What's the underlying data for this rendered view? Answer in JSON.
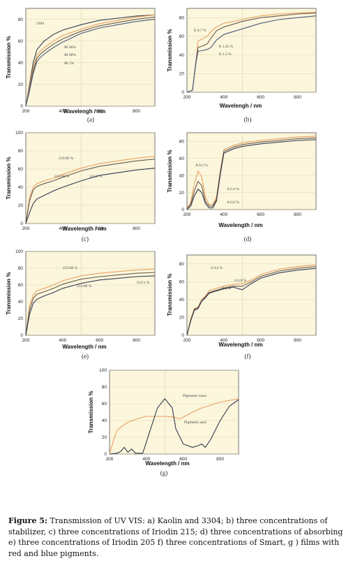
{
  "colors": {
    "plot_bg": "#fbf6dc",
    "grid": "#d8d0a8",
    "axis": "#555555",
    "orange": "#e8a060",
    "dark": "#333b52",
    "mid": "#6a5a4a",
    "blue": "#4a5a7a"
  },
  "caption": {
    "label": "Figure 5:",
    "text": "Transmission of UV VIS: a) Kaolin and 3304; b) three concentrations of stabilizer, c) three concentrations of Iriodin 215; d) three concentrations of absorbing e) three concentrations of Iriodin 205 f) three concentrations of Smart, g ) films with red and blue pigments."
  },
  "chart_data": [
    {
      "panel": "(a)",
      "type": "line",
      "xlabel": "Wavelengh / nm",
      "ylabel": "Transmission %",
      "xlim": [
        200,
        900
      ],
      "ylim": [
        0,
        90
      ],
      "xticks": [
        200,
        400,
        600,
        800
      ],
      "yticks": [
        0,
        20,
        40,
        60,
        80
      ],
      "series": [
        {
          "name": "3304",
          "color": "dark",
          "x": [
            200,
            220,
            240,
            260,
            280,
            300,
            350,
            400,
            500,
            600,
            700,
            800,
            900
          ],
          "y": [
            0,
            20,
            40,
            52,
            56,
            60,
            66,
            70,
            75,
            79,
            81,
            83,
            84
          ]
        },
        {
          "name": "IR 06%",
          "color": "orange",
          "x": [
            200,
            220,
            240,
            260,
            280,
            300,
            350,
            400,
            500,
            600,
            700,
            800,
            900
          ],
          "y": [
            0,
            18,
            36,
            47,
            51,
            54,
            60,
            65,
            71,
            76,
            79,
            82,
            84
          ]
        },
        {
          "name": "IR 08%",
          "color": "mid",
          "x": [
            200,
            220,
            240,
            260,
            280,
            300,
            350,
            400,
            500,
            600,
            700,
            800,
            900
          ],
          "y": [
            0,
            16,
            33,
            44,
            48,
            51,
            57,
            62,
            69,
            74,
            77,
            80,
            82
          ]
        },
        {
          "name": "IR 1%",
          "color": "blue",
          "x": [
            200,
            220,
            240,
            260,
            280,
            300,
            350,
            400,
            500,
            600,
            700,
            800,
            900
          ],
          "y": [
            0,
            14,
            30,
            41,
            45,
            48,
            54,
            59,
            67,
            72,
            75,
            78,
            80
          ]
        }
      ]
    },
    {
      "panel": "(b)",
      "type": "line",
      "xlabel": "Wavelengh / nm",
      "ylabel": "Transmission %",
      "xlim": [
        200,
        900
      ],
      "ylim": [
        0,
        90
      ],
      "xticks": [
        200,
        400,
        600,
        800
      ],
      "yticks": [
        0,
        20,
        40,
        60,
        80
      ],
      "series": [
        {
          "name": "E 0.7 %",
          "color": "orange",
          "x": [
            200,
            230,
            250,
            260,
            290,
            310,
            330,
            360,
            400,
            500,
            600,
            700,
            800,
            900
          ],
          "y": [
            0,
            2,
            35,
            55,
            58,
            60,
            65,
            70,
            74,
            78,
            82,
            84,
            85,
            86
          ]
        },
        {
          "name": "E 1.25 %",
          "color": "mid",
          "x": [
            200,
            230,
            250,
            260,
            290,
            310,
            330,
            360,
            400,
            500,
            600,
            700,
            800,
            900
          ],
          "y": [
            0,
            2,
            35,
            48,
            50,
            52,
            58,
            66,
            70,
            76,
            80,
            82,
            84,
            85
          ]
        },
        {
          "name": "E 1.5 %",
          "color": "blue",
          "x": [
            200,
            230,
            250,
            260,
            290,
            310,
            330,
            360,
            400,
            500,
            600,
            700,
            800,
            900
          ],
          "y": [
            0,
            2,
            33,
            44,
            45,
            46,
            48,
            56,
            62,
            68,
            74,
            78,
            80,
            82
          ]
        }
      ]
    },
    {
      "panel": "(c)",
      "type": "line",
      "xlabel": "Wavelength / nm",
      "ylabel": "Transmission %",
      "xlim": [
        200,
        900
      ],
      "ylim": [
        0,
        100
      ],
      "xticks": [
        200,
        400,
        600,
        800
      ],
      "yticks": [
        0,
        20,
        40,
        60,
        80,
        100
      ],
      "series": [
        {
          "name": "215/06 %",
          "color": "orange",
          "x": [
            200,
            220,
            240,
            260,
            300,
            350,
            400,
            500,
            600,
            700,
            800,
            900
          ],
          "y": [
            0,
            28,
            40,
            44,
            47,
            50,
            54,
            61,
            66,
            69,
            72,
            74
          ]
        },
        {
          "name": "215/08 %",
          "color": "mid",
          "x": [
            200,
            220,
            240,
            260,
            300,
            350,
            400,
            500,
            600,
            700,
            800,
            900
          ],
          "y": [
            0,
            25,
            37,
            41,
            44,
            47,
            51,
            58,
            63,
            66,
            69,
            71
          ]
        },
        {
          "name": "215/1 %",
          "color": "dark",
          "x": [
            200,
            220,
            240,
            260,
            300,
            350,
            400,
            500,
            600,
            700,
            800,
            900
          ],
          "y": [
            0,
            12,
            22,
            27,
            31,
            36,
            40,
            47,
            53,
            56,
            59,
            61
          ]
        }
      ]
    },
    {
      "panel": "(d)",
      "type": "line",
      "xlabel": "Wavelength / nm",
      "ylabel": "Transmission %",
      "xlim": [
        200,
        900
      ],
      "ylim": [
        0,
        90
      ],
      "xticks": [
        200,
        400,
        600,
        800
      ],
      "yticks": [
        0,
        20,
        40,
        60,
        80
      ],
      "series": [
        {
          "name": "A 0.2 %",
          "color": "orange",
          "x": [
            200,
            220,
            240,
            260,
            280,
            300,
            320,
            340,
            360,
            380,
            400,
            450,
            500,
            600,
            700,
            800,
            900
          ],
          "y": [
            2,
            8,
            30,
            45,
            38,
            15,
            6,
            6,
            15,
            45,
            70,
            75,
            78,
            81,
            83,
            85,
            86
          ]
        },
        {
          "name": "A 0.4 %",
          "color": "mid",
          "x": [
            200,
            220,
            240,
            260,
            280,
            300,
            320,
            340,
            360,
            380,
            400,
            450,
            500,
            600,
            700,
            800,
            900
          ],
          "y": [
            1,
            6,
            22,
            33,
            28,
            10,
            4,
            4,
            12,
            42,
            68,
            73,
            76,
            79,
            81,
            83,
            84
          ]
        },
        {
          "name": "A 0.6 %",
          "color": "dark",
          "x": [
            200,
            220,
            240,
            260,
            280,
            300,
            320,
            340,
            360,
            380,
            400,
            450,
            500,
            600,
            700,
            800,
            900
          ],
          "y": [
            0,
            4,
            16,
            24,
            20,
            7,
            2,
            2,
            10,
            40,
            66,
            71,
            74,
            77,
            79,
            81,
            82
          ]
        }
      ]
    },
    {
      "panel": "(e)",
      "type": "line",
      "xlabel": "Wavelength / nm",
      "ylabel": "Transmission %",
      "xlim": [
        200,
        900
      ],
      "ylim": [
        0,
        100
      ],
      "xticks": [
        200,
        400,
        600,
        800
      ],
      "yticks": [
        0,
        20,
        40,
        60,
        80,
        100
      ],
      "series": [
        {
          "name": "215/06 %",
          "color": "orange",
          "x": [
            200,
            220,
            240,
            260,
            300,
            350,
            400,
            500,
            600,
            700,
            800,
            900
          ],
          "y": [
            0,
            35,
            48,
            53,
            56,
            60,
            65,
            71,
            74,
            76,
            78,
            79
          ]
        },
        {
          "name": "215/08 %",
          "color": "mid",
          "x": [
            200,
            220,
            240,
            260,
            300,
            350,
            400,
            500,
            600,
            700,
            800,
            900
          ],
          "y": [
            0,
            30,
            44,
            49,
            52,
            56,
            61,
            67,
            70,
            72,
            74,
            75
          ]
        },
        {
          "name": "213/1 %",
          "color": "dark",
          "x": [
            200,
            220,
            240,
            260,
            300,
            350,
            400,
            500,
            600,
            700,
            800,
            900
          ],
          "y": [
            0,
            25,
            38,
            43,
            47,
            51,
            56,
            62,
            66,
            68,
            70,
            71
          ]
        }
      ]
    },
    {
      "panel": "(f)",
      "type": "line",
      "xlabel": "Wavelength / nm",
      "ylabel": "Transmission %",
      "xlim": [
        200,
        900
      ],
      "ylim": [
        0,
        90
      ],
      "xticks": [
        200,
        400,
        600,
        800
      ],
      "yticks": [
        0,
        20,
        40,
        60,
        80
      ],
      "series": [
        {
          "name": "S 0.6 %",
          "color": "orange",
          "x": [
            200,
            220,
            240,
            260,
            280,
            300,
            320,
            350,
            400,
            450,
            500,
            550,
            600,
            700,
            800,
            900
          ],
          "y": [
            0,
            18,
            30,
            32,
            40,
            44,
            50,
            52,
            55,
            57,
            58,
            62,
            68,
            74,
            77,
            79
          ]
        },
        {
          "name": "S 0.8 %",
          "color": "mid",
          "x": [
            200,
            220,
            240,
            260,
            280,
            300,
            320,
            350,
            400,
            450,
            500,
            550,
            600,
            700,
            800,
            900
          ],
          "y": [
            0,
            17,
            29,
            31,
            39,
            43,
            48,
            50,
            53,
            55,
            55,
            60,
            66,
            72,
            75,
            77
          ]
        },
        {
          "name": "S 1 %",
          "color": "dark",
          "x": [
            200,
            220,
            240,
            260,
            280,
            300,
            320,
            350,
            400,
            450,
            500,
            550,
            600,
            700,
            800,
            900
          ],
          "y": [
            0,
            16,
            28,
            30,
            38,
            42,
            47,
            49,
            52,
            54,
            51,
            58,
            64,
            70,
            73,
            75
          ]
        }
      ]
    },
    {
      "panel": "(g)",
      "type": "line",
      "xlabel": "Wavelength / nm",
      "ylabel": "Transmission %",
      "xlim": [
        200,
        900
      ],
      "ylim": [
        0,
        100
      ],
      "xticks": [
        200,
        400,
        600,
        800
      ],
      "yticks": [
        0,
        20,
        40,
        60,
        80,
        100
      ],
      "series": [
        {
          "name": "Pigmento rosso",
          "color": "orange",
          "x": [
            200,
            220,
            240,
            260,
            300,
            350,
            400,
            500,
            550,
            580,
            600,
            650,
            700,
            800,
            900
          ],
          "y": [
            0,
            15,
            28,
            32,
            38,
            42,
            45,
            45,
            44,
            42,
            44,
            50,
            55,
            62,
            66
          ]
        },
        {
          "name": "Pigmento azul",
          "color": "dark",
          "x": [
            200,
            240,
            260,
            280,
            300,
            320,
            340,
            380,
            420,
            460,
            500,
            540,
            560,
            600,
            650,
            680,
            700,
            720,
            750,
            800,
            850,
            900
          ],
          "y": [
            0,
            1,
            3,
            8,
            2,
            6,
            1,
            1,
            28,
            55,
            66,
            55,
            30,
            12,
            8,
            10,
            12,
            8,
            18,
            40,
            57,
            65
          ]
        }
      ]
    }
  ]
}
